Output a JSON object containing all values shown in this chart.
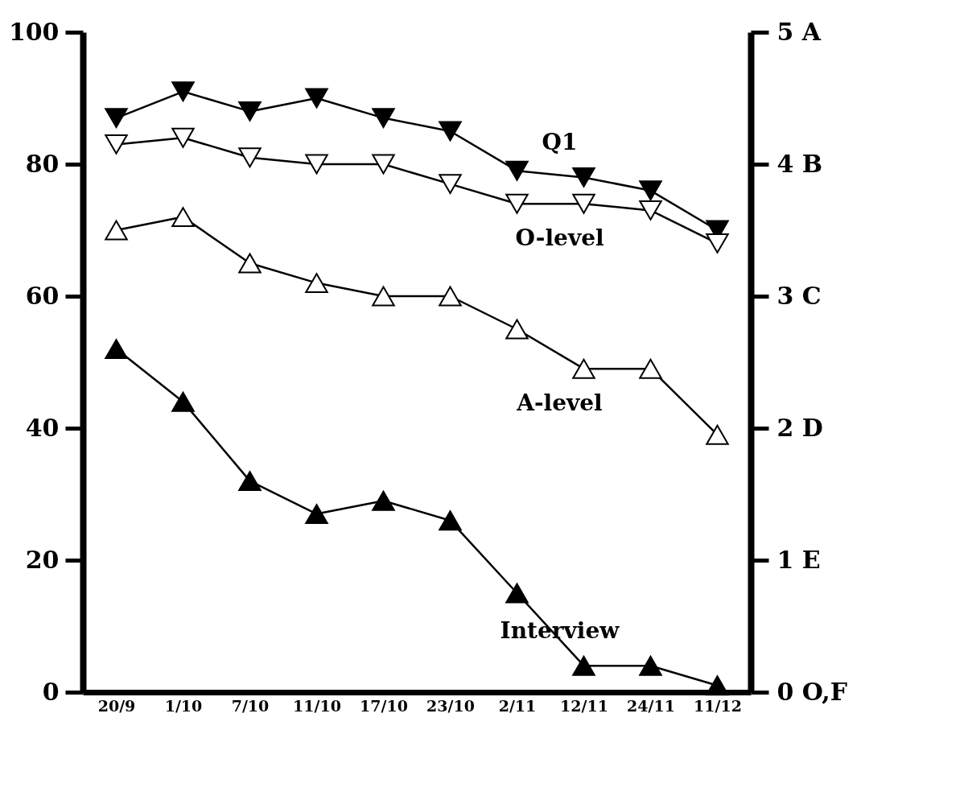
{
  "chart_data": {
    "type": "line",
    "categories": [
      "20/9",
      "1/10",
      "7/10",
      "11/10",
      "17/10",
      "23/10",
      "2/11",
      "12/11",
      "24/11",
      "11/12"
    ],
    "series": [
      {
        "name": "Q1",
        "color": "#000000",
        "marker": "triangle-down",
        "values": [
          87,
          91,
          88,
          90,
          87,
          85,
          79,
          78,
          76,
          70
        ]
      },
      {
        "name": "O-level",
        "color": "#000000",
        "marker": "triangle-down-open",
        "values": [
          83,
          84,
          81,
          80,
          80,
          77,
          74,
          74,
          73,
          68
        ]
      },
      {
        "name": "A-level",
        "color": "#000000",
        "marker": "triangle-open",
        "values": [
          70,
          72,
          65,
          62,
          60,
          60,
          55,
          49,
          49,
          39
        ]
      },
      {
        "name": "Interview",
        "color": "#000000",
        "marker": "triangle",
        "values": [
          52,
          44,
          32,
          27,
          29,
          26,
          15,
          4,
          4,
          1
        ]
      }
    ],
    "ylim": [
      0,
      100
    ],
    "yticks": [
      0,
      20,
      40,
      60,
      80,
      100
    ],
    "y2lim": [
      0,
      5
    ],
    "y2ticks": [
      {
        "value": 0,
        "label": "0 O,F"
      },
      {
        "value": 1,
        "label": "1 E"
      },
      {
        "value": 2,
        "label": "2 D"
      },
      {
        "value": 3,
        "label": "3 C"
      },
      {
        "value": 4,
        "label": "4 B"
      },
      {
        "value": 5,
        "label": "5 A"
      }
    ],
    "grid": false,
    "legend": false
  }
}
